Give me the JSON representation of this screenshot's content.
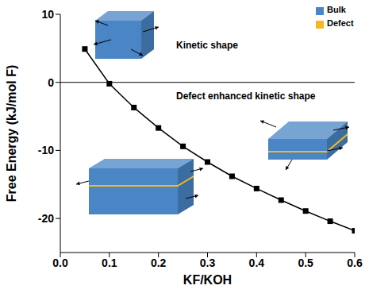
{
  "chart_data": {
    "type": "line",
    "x_label": "KF/KOH",
    "y_label": "Free Energy (kJ/mol F)",
    "x": [
      0.05,
      0.1,
      0.15,
      0.2,
      0.25,
      0.3,
      0.35,
      0.4,
      0.45,
      0.5,
      0.55,
      0.6
    ],
    "series": [
      {
        "name": "Free Energy",
        "color": "#000000",
        "marker": "square",
        "line_style": "solid",
        "values": [
          4.9,
          -0.2,
          -3.7,
          -6.7,
          -9.4,
          -11.7,
          -13.8,
          -15.6,
          -17.3,
          -18.9,
          -20.4,
          -21.8
        ]
      }
    ],
    "xlim": [
      0,
      0.6
    ],
    "xticks": [
      {
        "value": 0,
        "label": "0.0"
      },
      0.1,
      0.2,
      0.3,
      0.4,
      0.5,
      0.6
    ],
    "ylim": [
      -25,
      10
    ],
    "yticks": [
      -20,
      -10,
      0,
      10
    ],
    "hline": 0,
    "grid": false,
    "annotations": [
      "Kinetic shape",
      "Defect enhanced kinetic shape"
    ],
    "swatches": [
      {
        "name": "Bulk",
        "color": "#4a86c5"
      },
      {
        "name": "Defect",
        "color": "#f5b823"
      }
    ]
  }
}
